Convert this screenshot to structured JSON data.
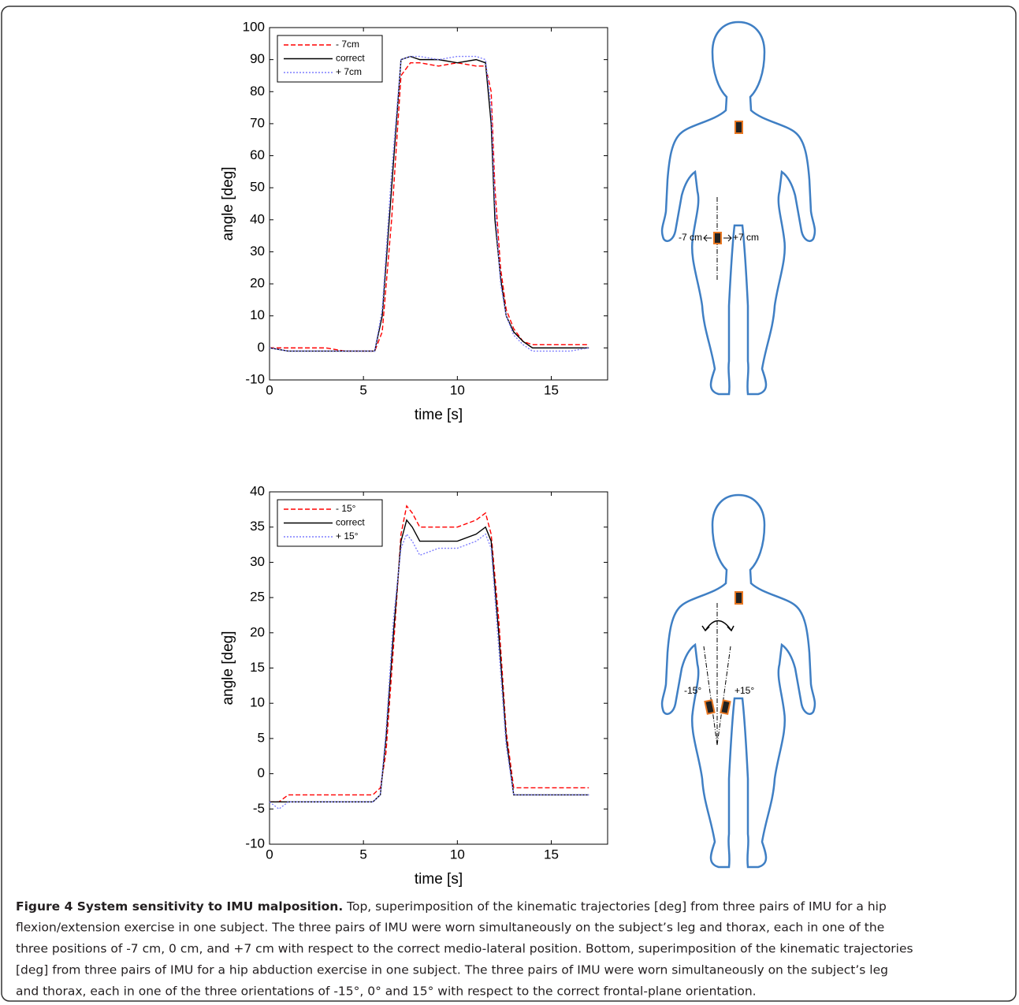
{
  "chart_data": [
    {
      "type": "line",
      "xlabel": "time [s]",
      "ylabel": "angle [deg]",
      "legend": "upper left",
      "x": [
        0,
        1,
        2,
        3,
        4,
        5,
        5.6,
        6,
        6.5,
        7,
        7.5,
        8,
        9,
        10,
        11,
        11.5,
        11.8,
        12,
        12.3,
        12.6,
        13,
        13.5,
        14,
        15,
        16,
        17
      ],
      "series": [
        {
          "name": "- 7cm",
          "color": "#ff0000",
          "style": "dashed",
          "values": [
            0,
            0,
            0,
            0,
            -1,
            -1,
            -1,
            5,
            40,
            85,
            89,
            89,
            88,
            89,
            88,
            88,
            80,
            50,
            25,
            12,
            6,
            2,
            1,
            1,
            1,
            1
          ]
        },
        {
          "name": "correct",
          "color": "#000000",
          "style": "solid",
          "values": [
            0,
            -1,
            -1,
            -1,
            -1,
            -1,
            -1,
            10,
            50,
            90,
            91,
            90,
            90,
            89,
            90,
            89,
            70,
            40,
            22,
            10,
            5,
            2,
            0,
            0,
            0,
            0
          ]
        },
        {
          "name": "+ 7cm",
          "color": "#7f7fff",
          "style": "dotted",
          "values": [
            0,
            -1,
            -1,
            -1,
            -1,
            -1,
            -1,
            12,
            55,
            90,
            91,
            91,
            90,
            91,
            91,
            90,
            75,
            45,
            20,
            10,
            4,
            1,
            -1,
            -1,
            -1,
            0
          ]
        }
      ],
      "xlim": [
        0,
        18
      ],
      "xticks": [
        0,
        5,
        10,
        15
      ],
      "ylim": [
        -10,
        100
      ],
      "yticks": [
        -10,
        0,
        10,
        20,
        30,
        40,
        50,
        60,
        70,
        80,
        90,
        100
      ]
    },
    {
      "type": "line",
      "xlabel": "time [s]",
      "ylabel": "angle [deg]",
      "legend": "upper left",
      "x": [
        0,
        0.5,
        1,
        2,
        3,
        4,
        5,
        5.5,
        5.9,
        6.2,
        6.6,
        7,
        7.3,
        7.6,
        8,
        9,
        10,
        11,
        11.5,
        11.8,
        12.2,
        12.6,
        13,
        13.5,
        14,
        15,
        16,
        17
      ],
      "series": [
        {
          "name": "- 15°",
          "color": "#ff0000",
          "style": "dashed",
          "values": [
            -4,
            -4,
            -3,
            -3,
            -3,
            -3,
            -3,
            -3,
            -2,
            3,
            18,
            34,
            38,
            37,
            35,
            35,
            35,
            36,
            37,
            34,
            22,
            6,
            -2,
            -2,
            -2,
            -2,
            -2,
            -2
          ]
        },
        {
          "name": "correct",
          "color": "#000000",
          "style": "solid",
          "values": [
            -4,
            -4,
            -4,
            -4,
            -4,
            -4,
            -4,
            -4,
            -3,
            5,
            20,
            33,
            36,
            35,
            33,
            33,
            33,
            34,
            35,
            33,
            20,
            5,
            -3,
            -3,
            -3,
            -3,
            -3,
            -3
          ]
        },
        {
          "name": "+ 15°",
          "color": "#7f7fff",
          "style": "dotted",
          "values": [
            -4,
            -5,
            -4,
            -4,
            -4,
            -4,
            -4,
            -4,
            -3,
            6,
            22,
            32,
            34,
            33,
            31,
            32,
            32,
            33,
            34,
            32,
            18,
            4,
            -3,
            -3,
            -3,
            -3,
            -3,
            -3
          ]
        }
      ],
      "xlim": [
        0,
        18
      ],
      "xticks": [
        0,
        5,
        10,
        15
      ],
      "ylim": [
        -10,
        40
      ],
      "yticks": [
        -10,
        -5,
        0,
        5,
        10,
        15,
        20,
        25,
        30,
        35,
        40
      ]
    }
  ],
  "diagrams": [
    {
      "labels": [
        "-7 cm",
        "+7 cm"
      ]
    },
    {
      "labels": [
        "-15°",
        "+15°"
      ]
    }
  ],
  "caption": {
    "title": "Figure 4 System sensitivity to IMU malposition.",
    "lines": [
      " Top, superimposition of the kinematic trajectories [deg] from three pairs of IMU for a hip",
      "flexion/extension exercise in one subject. The three pairs of IMU were worn simultaneously on the subject’s leg and thorax, each in one of the",
      "three positions of -7 cm, 0 cm, and +7 cm with respect to the correct medio-lateral position. Bottom, superimposition of the kinematic trajectories",
      "[deg] from three pairs of IMU for a hip abduction exercise in one subject. The three pairs of IMU were worn simultaneously on the subject’s leg",
      "and thorax, each in one of the three orientations of -15°, 0° and 15° with respect to the correct frontal-plane orientation."
    ]
  }
}
